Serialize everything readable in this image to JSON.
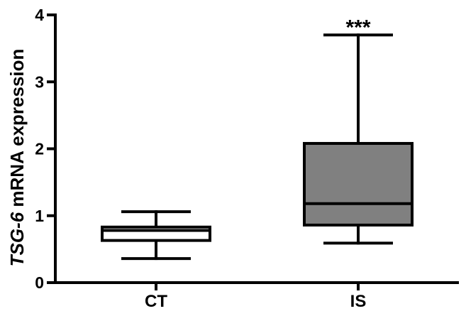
{
  "chart_data": {
    "type": "box",
    "categories": [
      "CT",
      "IS"
    ],
    "ylabel": {
      "italic_part": "TSG-6",
      "rest": " mRNA expression"
    },
    "ylim": [
      0,
      4
    ],
    "yticks": [
      "0",
      "1",
      "2",
      "3",
      "4"
    ],
    "series": [
      {
        "category": "CT",
        "min": 0.36,
        "q1": 0.63,
        "median": 0.78,
        "q3": 0.83,
        "max": 1.06,
        "fill": "#ffffff"
      },
      {
        "category": "IS",
        "min": 0.59,
        "q1": 0.86,
        "median": 1.18,
        "q3": 2.08,
        "max": 3.7,
        "fill": "#808080"
      }
    ],
    "annotations": [
      {
        "category": "IS",
        "text": "***"
      }
    ],
    "grid": false,
    "legend": "none"
  }
}
